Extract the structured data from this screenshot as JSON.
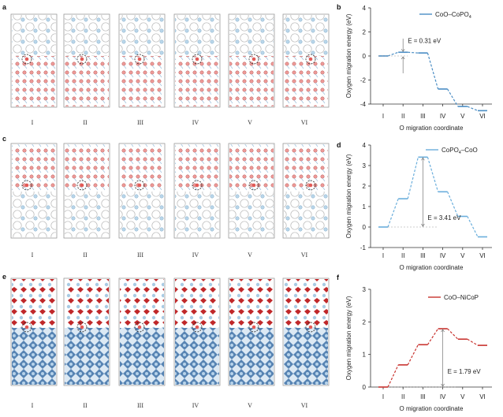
{
  "panel_letters": {
    "a": "a",
    "b": "b",
    "c": "c",
    "d": "d",
    "e": "e",
    "f": "f"
  },
  "roman": [
    "I",
    "II",
    "III",
    "IV",
    "V",
    "VI"
  ],
  "chart_data": [
    {
      "type": "line",
      "legend": "CoO–CoPO",
      "legend_sub": "4",
      "xlabel": "O migration coordinate",
      "ylabel": "Oxygen migration energy (eV)",
      "categories": [
        "I",
        "II",
        "III",
        "IV",
        "V",
        "VI"
      ],
      "values": [
        0,
        0.31,
        0.25,
        -2.75,
        -4.2,
        -4.55
      ],
      "ylim": [
        -4,
        4
      ],
      "yticks": [
        -4,
        -2,
        0,
        2,
        4
      ],
      "color": "#4a8dc4",
      "barrier_label": "E = 0.31 eV",
      "barrier_from": 0,
      "barrier_to": 0.31
    },
    {
      "type": "line",
      "legend": "CoPO",
      "legend_sub": "4",
      "legend_suffix": "–CoO",
      "xlabel": "O migration coordinate",
      "ylabel": "Oxygen migration energy (eV)",
      "categories": [
        "I",
        "II",
        "III",
        "IV",
        "V",
        "VI"
      ],
      "values": [
        0,
        1.38,
        3.41,
        1.72,
        0.52,
        -0.48
      ],
      "ylim": [
        -1,
        4
      ],
      "yticks": [
        -1,
        0,
        1,
        2,
        3,
        4
      ],
      "color": "#6aaedc",
      "barrier_label": "E = 3.41 eV",
      "barrier_from": 0,
      "barrier_to": 3.41
    },
    {
      "type": "line",
      "legend": "CoO–NiCoP",
      "xlabel": "O migration coordinate",
      "ylabel": "Oxygen migration energy (eV)",
      "categories": [
        "I",
        "II",
        "III",
        "IV",
        "V",
        "VI"
      ],
      "values": [
        0,
        0.68,
        1.3,
        1.79,
        1.47,
        1.28
      ],
      "ylim": [
        0,
        3
      ],
      "yticks": [
        0,
        1,
        2,
        3
      ],
      "color": "#c8322e",
      "barrier_label": "E = 1.79 eV",
      "barrier_from": 0,
      "barrier_to": 1.79
    }
  ]
}
